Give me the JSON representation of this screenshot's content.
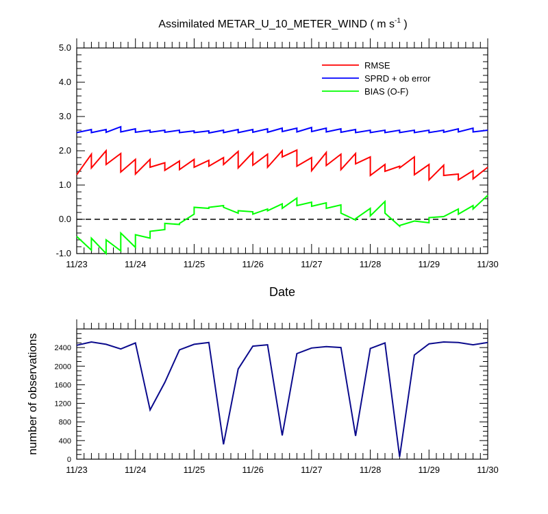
{
  "chart_data": [
    {
      "type": "line",
      "title": "Assimilated METAR_U_10_METER_WIND ( m s",
      "title_sup": "-1",
      "title_end": " )",
      "xlabel": "Date",
      "ylabel": "",
      "xlim": [
        0,
        7
      ],
      "ylim": [
        -1.0,
        5.0
      ],
      "x_tick_values": [
        0,
        1,
        2,
        3,
        4,
        5,
        6,
        7
      ],
      "x_tick_labels": [
        "11/23",
        "11/24",
        "11/25",
        "11/26",
        "11/27",
        "11/28",
        "11/29",
        "11/30"
      ],
      "y_tick_values": [
        -1.0,
        0.0,
        1.0,
        2.0,
        3.0,
        4.0,
        5.0
      ],
      "y_tick_labels": [
        "-1.0",
        "0.0",
        "1.0",
        "2.0",
        "3.0",
        "4.0",
        "5.0"
      ],
      "zero_line": "dashed",
      "legend_position": "top-right",
      "series": [
        {
          "name": "RMSE",
          "color": "#ff0000",
          "x": [
            0,
            0.25,
            0.25,
            0.5,
            0.5,
            0.75,
            0.75,
            1.0,
            1.0,
            1.25,
            1.25,
            1.5,
            1.5,
            1.75,
            1.75,
            2.0,
            2.0,
            2.25,
            2.25,
            2.5,
            2.5,
            2.75,
            2.75,
            3.0,
            3.0,
            3.25,
            3.25,
            3.5,
            3.5,
            3.75,
            3.75,
            4.0,
            4.0,
            4.25,
            4.25,
            4.5,
            4.5,
            4.75,
            4.75,
            5.0,
            5.0,
            5.25,
            5.25,
            5.5,
            5.5,
            5.75,
            5.75,
            6.0,
            6.0,
            6.25,
            6.25,
            6.5,
            6.5,
            6.75,
            6.75,
            7.0
          ],
          "values": [
            1.3,
            1.9,
            1.5,
            2.0,
            1.6,
            1.92,
            1.38,
            1.75,
            1.32,
            1.75,
            1.52,
            1.65,
            1.43,
            1.7,
            1.45,
            1.75,
            1.52,
            1.72,
            1.55,
            1.8,
            1.6,
            1.98,
            1.5,
            1.95,
            1.58,
            1.9,
            1.52,
            2.0,
            1.82,
            2.02,
            1.55,
            1.8,
            1.42,
            1.95,
            1.57,
            1.9,
            1.45,
            1.92,
            1.62,
            1.82,
            1.28,
            1.6,
            1.4,
            1.55,
            1.5,
            1.82,
            1.3,
            1.6,
            1.15,
            1.58,
            1.28,
            1.32,
            1.15,
            1.42,
            1.18,
            1.52
          ]
        },
        {
          "name": "SPRD + ob error",
          "color": "#0000ff",
          "x": [
            0,
            0.25,
            0.25,
            0.5,
            0.5,
            0.75,
            0.75,
            1.0,
            1.0,
            1.25,
            1.25,
            1.5,
            1.5,
            1.75,
            1.75,
            2.0,
            2.0,
            2.25,
            2.25,
            2.5,
            2.5,
            2.75,
            2.75,
            3.0,
            3.0,
            3.25,
            3.25,
            3.5,
            3.5,
            3.75,
            3.75,
            4.0,
            4.0,
            4.25,
            4.25,
            4.5,
            4.5,
            4.75,
            4.75,
            5.0,
            5.0,
            5.25,
            5.25,
            5.5,
            5.5,
            5.75,
            5.75,
            6.0,
            6.0,
            6.25,
            6.25,
            6.5,
            6.5,
            6.75,
            6.75,
            7.0
          ],
          "values": [
            2.53,
            2.62,
            2.53,
            2.62,
            2.54,
            2.7,
            2.55,
            2.64,
            2.54,
            2.6,
            2.54,
            2.6,
            2.54,
            2.6,
            2.53,
            2.58,
            2.53,
            2.58,
            2.52,
            2.6,
            2.53,
            2.62,
            2.53,
            2.62,
            2.54,
            2.64,
            2.54,
            2.66,
            2.56,
            2.66,
            2.55,
            2.68,
            2.56,
            2.66,
            2.55,
            2.64,
            2.54,
            2.62,
            2.53,
            2.6,
            2.53,
            2.6,
            2.53,
            2.6,
            2.53,
            2.6,
            2.53,
            2.6,
            2.53,
            2.6,
            2.54,
            2.64,
            2.55,
            2.66,
            2.55,
            2.6
          ]
        },
        {
          "name": "BIAS (O-F)",
          "color": "#00ff00",
          "x": [
            0,
            0.25,
            0.25,
            0.5,
            0.5,
            0.75,
            0.75,
            1.0,
            1.0,
            1.25,
            1.25,
            1.5,
            1.5,
            1.75,
            1.75,
            2.0,
            2.0,
            2.25,
            2.25,
            2.5,
            2.5,
            2.75,
            2.75,
            3.0,
            3.0,
            3.25,
            3.25,
            3.5,
            3.5,
            3.75,
            3.75,
            4.0,
            4.0,
            4.25,
            4.25,
            4.5,
            4.5,
            4.75,
            4.75,
            5.0,
            5.0,
            5.25,
            5.25,
            5.5,
            5.5,
            5.75,
            5.75,
            6.0,
            6.0,
            6.25,
            6.25,
            6.5,
            6.5,
            6.75,
            6.75,
            7.0
          ],
          "values": [
            -0.5,
            -0.9,
            -0.55,
            -1.0,
            -0.6,
            -0.92,
            -0.4,
            -0.82,
            -0.45,
            -0.55,
            -0.35,
            -0.3,
            -0.12,
            -0.15,
            -0.12,
            0.15,
            0.35,
            0.32,
            0.35,
            0.4,
            0.35,
            0.18,
            0.25,
            0.22,
            0.15,
            0.3,
            0.25,
            0.45,
            0.32,
            0.62,
            0.4,
            0.5,
            0.38,
            0.48,
            0.32,
            0.42,
            0.18,
            -0.02,
            0.02,
            0.32,
            0.1,
            0.52,
            0.18,
            -0.2,
            -0.18,
            -0.05,
            -0.05,
            -0.1,
            0.05,
            0.08,
            0.08,
            0.3,
            0.15,
            0.4,
            0.3,
            0.7
          ]
        }
      ]
    },
    {
      "type": "line",
      "title": "",
      "xlabel": "",
      "ylabel": "number of observations",
      "xlim": [
        0,
        7
      ],
      "ylim": [
        0,
        2800
      ],
      "x_tick_values": [
        0,
        1,
        2,
        3,
        4,
        5,
        6,
        7
      ],
      "x_tick_labels": [
        "11/23",
        "11/24",
        "11/25",
        "11/26",
        "11/27",
        "11/28",
        "11/29",
        "11/30"
      ],
      "y_tick_values": [
        0,
        400,
        800,
        1200,
        1600,
        2000,
        2400
      ],
      "y_tick_labels": [
        "0",
        "400",
        "800",
        "1200",
        "1600",
        "2000",
        "2400"
      ],
      "series": [
        {
          "name": "number of observations",
          "color": "#0a0a8c",
          "x": [
            0,
            0.25,
            0.5,
            0.75,
            1.0,
            1.25,
            1.5,
            1.75,
            2.0,
            2.25,
            2.5,
            2.75,
            3.0,
            3.25,
            3.5,
            3.75,
            4.0,
            4.25,
            4.5,
            4.75,
            5.0,
            5.25,
            5.5,
            5.75,
            6.0,
            6.25,
            6.5,
            6.75,
            7.0
          ],
          "values": [
            2450,
            2520,
            2470,
            2370,
            2500,
            1060,
            1650,
            2350,
            2470,
            2510,
            320,
            1940,
            2430,
            2460,
            510,
            2270,
            2390,
            2420,
            2400,
            500,
            2380,
            2500,
            50,
            2240,
            2480,
            2520,
            2510,
            2460,
            2510
          ]
        }
      ]
    }
  ]
}
